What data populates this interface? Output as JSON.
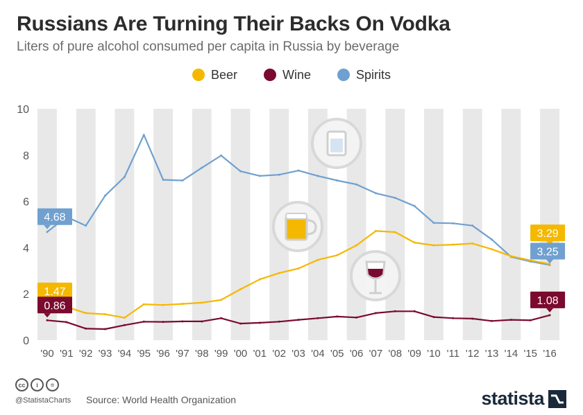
{
  "title": "Russians Are Turning Their Backs On Vodka",
  "subtitle": "Liters of pure alcohol consumed per capita in Russia by beverage",
  "legend": [
    {
      "name": "Beer",
      "color": "#f5b800"
    },
    {
      "name": "Wine",
      "color": "#7a0a2e"
    },
    {
      "name": "Spirits",
      "color": "#6fa0d0"
    }
  ],
  "chart_data": {
    "type": "line",
    "x": [
      "'90",
      "'91",
      "'92",
      "'93",
      "'94",
      "'95",
      "'96",
      "'97",
      "'98",
      "'99",
      "'00",
      "'01",
      "'02",
      "'03",
      "'04",
      "'05",
      "'06",
      "'07",
      "'08",
      "'09",
      "'10",
      "'11",
      "'12",
      "'13",
      "'14",
      "'15",
      "'16"
    ],
    "ylim": [
      0,
      10
    ],
    "yticks": [
      "0",
      "2",
      "4",
      "6",
      "8",
      "10"
    ],
    "grid": "alternating vertical bands",
    "series": [
      {
        "name": "Spirits",
        "color": "#6fa0d0",
        "values": [
          4.68,
          5.33,
          4.95,
          6.25,
          7.05,
          8.87,
          6.93,
          6.9,
          7.45,
          7.98,
          7.3,
          7.1,
          7.15,
          7.33,
          7.1,
          6.9,
          6.73,
          6.35,
          6.15,
          5.8,
          5.07,
          5.05,
          4.95,
          4.35,
          3.6,
          3.4,
          3.25
        ]
      },
      {
        "name": "Beer",
        "color": "#f5b800",
        "values": [
          1.47,
          1.44,
          1.17,
          1.12,
          0.97,
          1.55,
          1.52,
          1.57,
          1.62,
          1.74,
          2.2,
          2.63,
          2.9,
          3.1,
          3.47,
          3.67,
          4.1,
          4.72,
          4.67,
          4.22,
          4.1,
          4.13,
          4.18,
          3.93,
          3.63,
          3.45,
          3.29
        ]
      },
      {
        "name": "Wine",
        "color": "#7a0a2e",
        "values": [
          0.86,
          0.78,
          0.5,
          0.48,
          0.65,
          0.8,
          0.79,
          0.81,
          0.81,
          0.95,
          0.72,
          0.75,
          0.8,
          0.88,
          0.95,
          1.02,
          0.98,
          1.17,
          1.25,
          1.25,
          1.0,
          0.95,
          0.93,
          0.83,
          0.88,
          0.86,
          1.08
        ]
      }
    ],
    "annotations": [
      {
        "series": "Spirits",
        "index": 0,
        "text": "4.68"
      },
      {
        "series": "Beer",
        "index": 0,
        "text": "1.47"
      },
      {
        "series": "Wine",
        "index": 0,
        "text": "0.86"
      },
      {
        "series": "Beer",
        "index": 26,
        "text": "3.29"
      },
      {
        "series": "Spirits",
        "index": 26,
        "text": "3.25"
      },
      {
        "series": "Wine",
        "index": 26,
        "text": "1.08"
      }
    ],
    "icons": [
      "water-glass-icon",
      "beer-mug-icon",
      "wine-glass-icon"
    ]
  },
  "footer": {
    "handle": "@StatistaCharts",
    "source": "Source: World Health Organization",
    "brand": "statista"
  }
}
